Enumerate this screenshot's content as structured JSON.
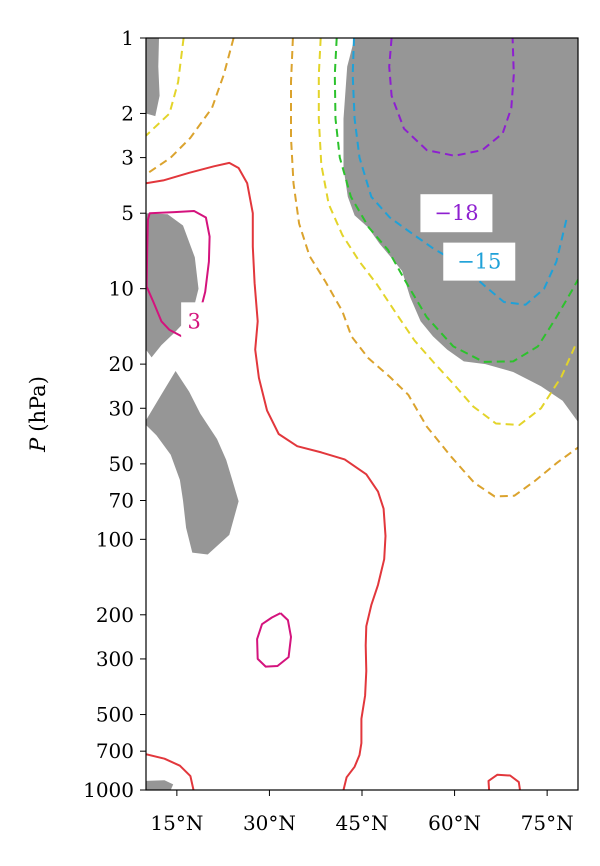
{
  "chart_data": {
    "type": "contour",
    "ylabel_symbol": "P",
    "ylabel_unit": "(hPa)",
    "y_scale": "log",
    "y_inverted": true,
    "ylim": [
      1000,
      1
    ],
    "xlim": [
      10,
      80
    ],
    "x_ticks": [
      {
        "value": 15,
        "label": "15°N"
      },
      {
        "value": 30,
        "label": "30°N"
      },
      {
        "value": 45,
        "label": "45°N"
      },
      {
        "value": 60,
        "label": "60°N"
      },
      {
        "value": 75,
        "label": "75°N"
      }
    ],
    "y_ticks": [
      {
        "value": 1,
        "label": "1"
      },
      {
        "value": 2,
        "label": "2"
      },
      {
        "value": 3,
        "label": "3"
      },
      {
        "value": 5,
        "label": "5"
      },
      {
        "value": 10,
        "label": "10"
      },
      {
        "value": 20,
        "label": "20"
      },
      {
        "value": 30,
        "label": "30"
      },
      {
        "value": 50,
        "label": "50"
      },
      {
        "value": 70,
        "label": "70"
      },
      {
        "value": 100,
        "label": "100"
      },
      {
        "value": 200,
        "label": "200"
      },
      {
        "value": 300,
        "label": "300"
      },
      {
        "value": 500,
        "label": "500"
      },
      {
        "value": 700,
        "label": "700"
      },
      {
        "value": 1000,
        "label": "1000"
      }
    ],
    "contour_labels": [
      {
        "text": "−18",
        "color": "#8e1fd0",
        "lat": 60.3,
        "p": 5.0
      },
      {
        "text": "−15",
        "color": "#1fa1d8",
        "lat": 64.0,
        "p": 7.8
      },
      {
        "text": "3",
        "color": "#d4137d",
        "lat": 17.8,
        "p": 13.5
      }
    ],
    "shading": {
      "color": "#969696",
      "meaning": "significant"
    },
    "contours": [
      {
        "name": "c-18",
        "color": "#8e1fd0",
        "dashed": true,
        "points": [
          [
            49.8,
            1.0
          ],
          [
            49.4,
            1.3
          ],
          [
            49.8,
            1.7
          ],
          [
            51.8,
            2.3
          ],
          [
            55.5,
            2.8
          ],
          [
            60.0,
            2.95
          ],
          [
            64.5,
            2.8
          ],
          [
            67.8,
            2.4
          ],
          [
            69.2,
            1.9
          ],
          [
            69.6,
            1.4
          ],
          [
            69.4,
            1.0
          ]
        ]
      },
      {
        "name": "c-15",
        "color": "#1fa1d8",
        "dashed": true,
        "points": [
          [
            43.7,
            1.0
          ],
          [
            43.5,
            1.4
          ],
          [
            43.8,
            2.1
          ],
          [
            44.6,
            3.0
          ],
          [
            46.5,
            4.3
          ],
          [
            49.5,
            5.2
          ],
          [
            53.0,
            6.0
          ],
          [
            56.5,
            6.9
          ],
          [
            61.0,
            8.0
          ],
          [
            65.0,
            9.8
          ],
          [
            68.0,
            11.3
          ],
          [
            71.5,
            11.6
          ],
          [
            74.5,
            10.0
          ],
          [
            76.5,
            7.8
          ],
          [
            78.2,
            5.2
          ]
        ]
      },
      {
        "name": "c-12",
        "color": "#2cc22c",
        "dashed": true,
        "points": [
          [
            40.9,
            1.0
          ],
          [
            40.6,
            1.4
          ],
          [
            40.7,
            2.1
          ],
          [
            41.4,
            3.0
          ],
          [
            43.2,
            4.3
          ],
          [
            46.1,
            5.7
          ],
          [
            49.2,
            7.0
          ],
          [
            52.0,
            9.3
          ],
          [
            55.5,
            13.0
          ],
          [
            59.8,
            17.0
          ],
          [
            64.7,
            19.6
          ],
          [
            69.5,
            19.5
          ],
          [
            73.5,
            17.0
          ],
          [
            76.5,
            13.0
          ],
          [
            79.0,
            10.2
          ],
          [
            80.0,
            9.2
          ]
        ]
      },
      {
        "name": "c-9",
        "color": "#e3d42a",
        "dashed": true,
        "points": [
          [
            16.1,
            1.0
          ],
          [
            15.2,
            1.5
          ],
          [
            13.8,
            2.0
          ],
          [
            10.0,
            2.45
          ]
        ]
      },
      {
        "name": "c-9b",
        "color": "#e3d42a",
        "dashed": true,
        "points": [
          [
            38.3,
            1.0
          ],
          [
            38.0,
            1.4
          ],
          [
            38.0,
            2.1
          ],
          [
            38.4,
            3.2
          ],
          [
            39.6,
            4.6
          ],
          [
            41.8,
            6.1
          ],
          [
            44.6,
            7.8
          ],
          [
            47.4,
            9.6
          ],
          [
            50.5,
            12.5
          ],
          [
            53.5,
            16.1
          ],
          [
            56.7,
            19.8
          ],
          [
            59.7,
            23.8
          ],
          [
            63.0,
            29.5
          ],
          [
            66.7,
            34.5
          ],
          [
            70.5,
            35.0
          ],
          [
            74.0,
            30.0
          ],
          [
            77.3,
            22.5
          ],
          [
            79.5,
            17.0
          ]
        ]
      },
      {
        "name": "c-6",
        "color": "#dba32e",
        "dashed": true,
        "points": [
          [
            24.2,
            1.0
          ],
          [
            22.6,
            1.4
          ],
          [
            20.7,
            1.9
          ],
          [
            17.2,
            2.5
          ],
          [
            14.0,
            3.0
          ],
          [
            10.0,
            3.5
          ]
        ]
      },
      {
        "name": "c-6b",
        "color": "#dba32e",
        "dashed": true,
        "points": [
          [
            33.8,
            1.0
          ],
          [
            33.5,
            1.5
          ],
          [
            33.5,
            2.5
          ],
          [
            33.9,
            3.8
          ],
          [
            34.8,
            5.5
          ],
          [
            36.5,
            7.4
          ],
          [
            39.1,
            9.4
          ],
          [
            41.8,
            12.3
          ],
          [
            43.3,
            15.5
          ],
          [
            46.0,
            18.9
          ],
          [
            49.5,
            22.5
          ],
          [
            52.5,
            26.5
          ],
          [
            55.5,
            35.5
          ],
          [
            59.5,
            47.0
          ],
          [
            63.2,
            59.5
          ],
          [
            66.5,
            67.5
          ],
          [
            69.7,
            67.0
          ],
          [
            73.0,
            58.5
          ],
          [
            76.6,
            49.5
          ],
          [
            80.0,
            43.0
          ]
        ]
      },
      {
        "name": "c0",
        "color": "#e2373c",
        "dashed": false,
        "points": [
          [
            10.0,
            3.8
          ],
          [
            12.8,
            3.7
          ],
          [
            17.0,
            3.45
          ],
          [
            21.0,
            3.25
          ],
          [
            23.5,
            3.15
          ],
          [
            25.0,
            3.3
          ],
          [
            26.4,
            3.8
          ],
          [
            27.3,
            5.0
          ],
          [
            27.3,
            6.8
          ],
          [
            27.6,
            9.5
          ],
          [
            28.1,
            13.5
          ],
          [
            27.7,
            17.5
          ],
          [
            28.3,
            22.7
          ],
          [
            29.6,
            30.6
          ],
          [
            31.5,
            38.0
          ],
          [
            34.5,
            42.5
          ],
          [
            38.4,
            45.0
          ],
          [
            42.2,
            48.0
          ],
          [
            45.7,
            55.0
          ],
          [
            47.6,
            64.5
          ],
          [
            48.5,
            75.5
          ],
          [
            48.8,
            97.0
          ],
          [
            48.6,
            120.0
          ],
          [
            47.6,
            152.0
          ],
          [
            46.5,
            183.0
          ],
          [
            45.7,
            222.0
          ],
          [
            45.6,
            265.0
          ],
          [
            45.7,
            335.0
          ],
          [
            45.5,
            420.0
          ],
          [
            44.9,
            520.0
          ],
          [
            44.9,
            650.0
          ],
          [
            44.6,
            725.0
          ],
          [
            43.8,
            808.0
          ],
          [
            42.5,
            890.0
          ],
          [
            42.0,
            1000.0
          ]
        ]
      },
      {
        "name": "c0b",
        "color": "#e2373c",
        "dashed": false,
        "points": [
          [
            10.0,
            720.0
          ],
          [
            13.0,
            750.0
          ],
          [
            15.5,
            800.0
          ],
          [
            17.2,
            880.0
          ],
          [
            17.7,
            1000.0
          ]
        ]
      },
      {
        "name": "c0c",
        "color": "#e2373c",
        "dashed": false,
        "points": [
          [
            65.6,
            1000.0
          ],
          [
            65.5,
            920.0
          ],
          [
            66.9,
            870.0
          ],
          [
            69.0,
            875.0
          ],
          [
            70.4,
            930.0
          ],
          [
            70.6,
            1000.0
          ]
        ]
      },
      {
        "name": "c3",
        "color": "#d4137d",
        "dashed": false,
        "points": [
          [
            10.1,
            9.8
          ],
          [
            11.2,
            11.3
          ],
          [
            12.5,
            13.5
          ],
          [
            13.8,
            14.6
          ],
          [
            15.8,
            15.5
          ],
          [
            17.2,
            15.0
          ],
          [
            18.5,
            13.1
          ],
          [
            19.6,
            10.3
          ],
          [
            20.2,
            7.8
          ],
          [
            20.3,
            6.2
          ],
          [
            19.7,
            5.2
          ],
          [
            17.8,
            4.9
          ],
          [
            14.6,
            4.95
          ],
          [
            10.6,
            5.0
          ],
          [
            10.3,
            5.3
          ],
          [
            10.2,
            7.0
          ],
          [
            10.1,
            9.8
          ]
        ]
      },
      {
        "name": "c3b",
        "color": "#d4137d",
        "dashed": false,
        "points": [
          [
            31.8,
            197.0
          ],
          [
            33.0,
            210.0
          ],
          [
            33.5,
            245.0
          ],
          [
            33.1,
            295.0
          ],
          [
            31.3,
            320.0
          ],
          [
            29.4,
            322.0
          ],
          [
            28.1,
            300.0
          ],
          [
            28.0,
            250.0
          ],
          [
            28.8,
            218.0
          ],
          [
            30.4,
            205.0
          ],
          [
            31.8,
            197.0
          ]
        ]
      }
    ],
    "shaded_regions": [
      {
        "name": "shade-polar-stratosphere",
        "points": [
          [
            43.8,
            1.0
          ],
          [
            80.0,
            1.0
          ],
          [
            80.0,
            34.0
          ],
          [
            77.5,
            28.0
          ],
          [
            74.0,
            24.5
          ],
          [
            69.5,
            21.5
          ],
          [
            65.0,
            20.0
          ],
          [
            61.5,
            19.5
          ],
          [
            58.8,
            17.5
          ],
          [
            56.5,
            15.5
          ],
          [
            54.5,
            13.5
          ],
          [
            52.8,
            10.8
          ],
          [
            51.5,
            8.5
          ],
          [
            49.5,
            7.4
          ],
          [
            47.8,
            6.6
          ],
          [
            46.0,
            5.7
          ],
          [
            43.8,
            5.1
          ],
          [
            42.7,
            4.3
          ],
          [
            42.0,
            3.3
          ],
          [
            42.0,
            2.1
          ],
          [
            42.6,
            1.3
          ],
          [
            43.8,
            1.0
          ]
        ]
      },
      {
        "name": "shade-tropical-upper",
        "points": [
          [
            10.0,
            1.0
          ],
          [
            12.1,
            1.0
          ],
          [
            12.0,
            1.3
          ],
          [
            12.2,
            1.7
          ],
          [
            11.5,
            2.05
          ],
          [
            10.0,
            2.0
          ]
        ]
      },
      {
        "name": "shade-tropical-mid",
        "points": [
          [
            10.0,
            5.0
          ],
          [
            13.5,
            5.05
          ],
          [
            16.0,
            5.6
          ],
          [
            17.9,
            7.5
          ],
          [
            18.5,
            10.0
          ],
          [
            17.5,
            12.6
          ],
          [
            14.6,
            15.0
          ],
          [
            12.5,
            16.8
          ],
          [
            10.9,
            18.8
          ],
          [
            10.0,
            17.5
          ]
        ]
      },
      {
        "name": "shade-tropical-low",
        "points": [
          [
            10.0,
            33.5
          ],
          [
            12.6,
            26.2
          ],
          [
            14.8,
            21.3
          ],
          [
            17.0,
            25.8
          ],
          [
            18.8,
            31.5
          ],
          [
            21.5,
            39.8
          ],
          [
            23.0,
            48.2
          ],
          [
            24.0,
            58.2
          ],
          [
            25.0,
            70.5
          ],
          [
            23.5,
            96.0
          ],
          [
            20.0,
            115.0
          ],
          [
            17.5,
            113.0
          ],
          [
            16.5,
            90.0
          ],
          [
            16.0,
            70.0
          ],
          [
            15.5,
            58.0
          ],
          [
            14.0,
            46.0
          ],
          [
            11.7,
            38.5
          ],
          [
            10.0,
            35.0
          ]
        ]
      },
      {
        "name": "shade-surface",
        "points": [
          [
            10.0,
            920.0
          ],
          [
            13.0,
            915.0
          ],
          [
            14.4,
            950.0
          ],
          [
            14.0,
            1000.0
          ],
          [
            10.0,
            1000.0
          ]
        ]
      }
    ]
  }
}
